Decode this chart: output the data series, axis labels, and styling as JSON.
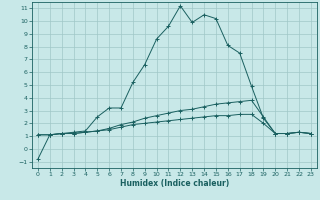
{
  "xlabel": "Humidex (Indice chaleur)",
  "bg_color": "#c8e8e8",
  "grid_color": "#a0c8c8",
  "line_color": "#1a6060",
  "xlim": [
    -0.5,
    23.5
  ],
  "ylim": [
    -1.5,
    11.5
  ],
  "xticks": [
    0,
    1,
    2,
    3,
    4,
    5,
    6,
    7,
    8,
    9,
    10,
    11,
    12,
    13,
    14,
    15,
    16,
    17,
    18,
    19,
    20,
    21,
    22,
    23
  ],
  "yticks": [
    -1,
    0,
    1,
    2,
    3,
    4,
    5,
    6,
    7,
    8,
    9,
    10,
    11
  ],
  "curve1_x": [
    0,
    1,
    2,
    3,
    4,
    5,
    6,
    7,
    8,
    9,
    10,
    11,
    12,
    13,
    14,
    15,
    16,
    17,
    18,
    19,
    20,
    21,
    22,
    23
  ],
  "curve1_y": [
    -0.8,
    1.1,
    1.2,
    1.3,
    1.4,
    2.5,
    3.2,
    3.2,
    5.2,
    6.6,
    8.6,
    9.6,
    11.2,
    9.9,
    10.5,
    10.2,
    8.1,
    7.5,
    4.9,
    2.4,
    1.2,
    1.2,
    1.3,
    1.2
  ],
  "curve2_x": [
    0,
    1,
    2,
    3,
    4,
    5,
    6,
    7,
    8,
    9,
    10,
    11,
    12,
    13,
    14,
    15,
    16,
    17,
    18,
    19,
    20,
    21,
    22,
    23
  ],
  "curve2_y": [
    1.1,
    1.1,
    1.2,
    1.2,
    1.3,
    1.4,
    1.6,
    1.9,
    2.1,
    2.4,
    2.6,
    2.8,
    3.0,
    3.1,
    3.3,
    3.5,
    3.6,
    3.7,
    3.8,
    2.5,
    1.2,
    1.2,
    1.3,
    1.2
  ],
  "curve3_x": [
    0,
    1,
    2,
    3,
    4,
    5,
    6,
    7,
    8,
    9,
    10,
    11,
    12,
    13,
    14,
    15,
    16,
    17,
    18,
    19,
    20,
    21,
    22,
    23
  ],
  "curve3_y": [
    1.1,
    1.1,
    1.2,
    1.2,
    1.3,
    1.4,
    1.5,
    1.7,
    1.9,
    2.0,
    2.1,
    2.2,
    2.3,
    2.4,
    2.5,
    2.6,
    2.6,
    2.7,
    2.7,
    2.0,
    1.2,
    1.2,
    1.3,
    1.2
  ],
  "tick_fontsize": 4.5,
  "xlabel_fontsize": 5.5
}
